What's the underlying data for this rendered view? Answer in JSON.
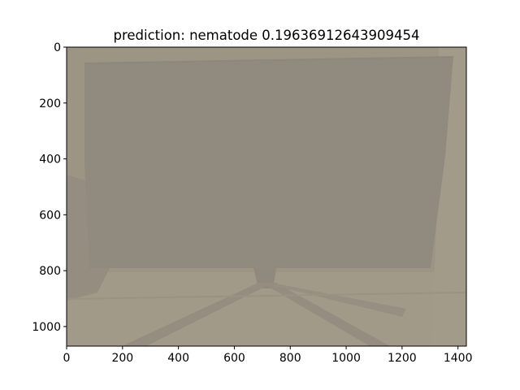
{
  "figure": {
    "title": "prediction: nematode 0.19636912643909454"
  },
  "axes": {
    "x": {
      "lim": [
        0,
        1430
      ],
      "ticks": [
        0,
        200,
        400,
        600,
        800,
        1000,
        1200,
        1400
      ],
      "tick_labels": [
        "0",
        "200",
        "400",
        "600",
        "800",
        "1000",
        "1200",
        "1400"
      ]
    },
    "y": {
      "lim": [
        1070,
        0
      ],
      "inverted": true,
      "ticks": [
        0,
        200,
        400,
        600,
        800,
        1000
      ],
      "tick_labels": [
        "0",
        "200",
        "400",
        "600",
        "800",
        "1000"
      ]
    }
  },
  "photo": {
    "description_colors": {
      "background": "#9d9584",
      "monitor_screen": "#908a7e",
      "monitor_shadow": "#8a857b",
      "floor": "#a39b89",
      "wall_right": "#a59d8c"
    }
  }
}
